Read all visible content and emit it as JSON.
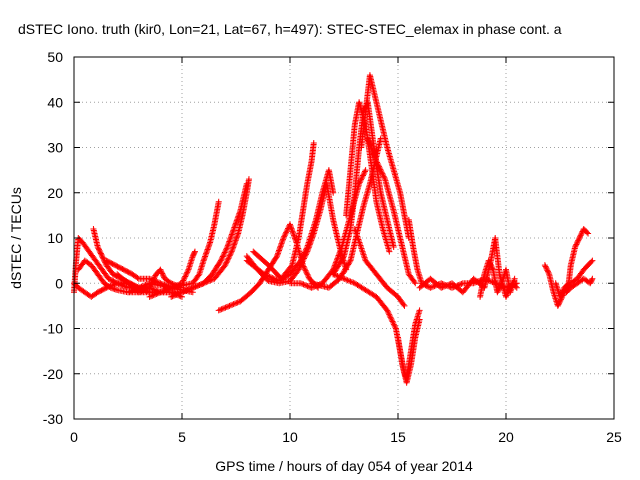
{
  "chart_data": {
    "type": "scatter",
    "title": "dSTEC Iono. truth (kir0, Lon=21, Lat=67, h=497): STEC-STEC_elemax in phase cont. a",
    "xlabel": "GPS time / hours of day 054 of year 2014",
    "ylabel": "dSTEC  / TECUs",
    "xlim": [
      0,
      25
    ],
    "ylim": [
      -30,
      50
    ],
    "x_ticks": [
      0,
      5,
      10,
      15,
      20,
      25
    ],
    "y_ticks": [
      -30,
      -20,
      -10,
      0,
      10,
      20,
      30,
      40,
      50
    ],
    "x_tick_labels": [
      "0",
      "5",
      "10",
      "15",
      "20",
      "25"
    ],
    "y_tick_labels": [
      "-30",
      "-20",
      "-10",
      "0",
      "10",
      "20",
      "30",
      "40",
      "50"
    ],
    "grid": true,
    "marker": "+",
    "color": "#ff0000",
    "series": [
      {
        "points": [
          [
            0.0,
            -2
          ],
          [
            0.1,
            5
          ],
          [
            0.2,
            10
          ],
          [
            0.4,
            9
          ],
          [
            0.7,
            7
          ],
          [
            1.0,
            5
          ],
          [
            1.3,
            3
          ],
          [
            1.6,
            1
          ],
          [
            2.0,
            0
          ],
          [
            2.5,
            -1
          ],
          [
            3.0,
            -1
          ]
        ]
      },
      {
        "points": [
          [
            0.0,
            0
          ],
          [
            0.2,
            -1
          ],
          [
            0.5,
            -2
          ],
          [
            0.8,
            -3
          ],
          [
            1.1,
            -2
          ],
          [
            1.5,
            -1
          ],
          [
            2.0,
            0
          ],
          [
            2.5,
            0
          ],
          [
            3.0,
            -1
          ],
          [
            3.5,
            -2
          ],
          [
            4.0,
            -2
          ],
          [
            4.5,
            -2
          ],
          [
            5.0,
            -3
          ]
        ]
      },
      {
        "points": [
          [
            0.2,
            3
          ],
          [
            0.5,
            5
          ],
          [
            0.8,
            4
          ],
          [
            1.1,
            2
          ],
          [
            1.4,
            0
          ],
          [
            1.7,
            -1
          ],
          [
            2.0,
            -1.5
          ],
          [
            2.5,
            -2
          ],
          [
            3.0,
            -2
          ],
          [
            3.5,
            -2
          ]
        ]
      },
      {
        "points": [
          [
            0.9,
            12
          ],
          [
            1.0,
            10
          ],
          [
            1.1,
            8
          ],
          [
            1.3,
            6
          ],
          [
            1.5,
            4
          ],
          [
            1.8,
            2
          ],
          [
            2.2,
            1
          ],
          [
            2.6,
            0
          ],
          [
            3.0,
            -1
          ],
          [
            3.5,
            -1
          ],
          [
            4.0,
            -2
          ],
          [
            4.5,
            -2
          ],
          [
            5.0,
            -2
          ]
        ]
      },
      {
        "points": [
          [
            1.5,
            5
          ],
          [
            1.9,
            4
          ],
          [
            2.3,
            3
          ],
          [
            2.7,
            2
          ],
          [
            3.0,
            1
          ],
          [
            3.5,
            1
          ],
          [
            4.0,
            0
          ],
          [
            4.5,
            -1
          ],
          [
            5.0,
            -1.5
          ],
          [
            5.5,
            -2
          ]
        ]
      },
      {
        "points": [
          [
            2.0,
            2
          ],
          [
            2.5,
            0
          ],
          [
            3.0,
            -2
          ],
          [
            3.5,
            -1
          ],
          [
            3.8,
            2
          ],
          [
            4.0,
            3
          ],
          [
            4.2,
            1
          ],
          [
            4.5,
            0
          ],
          [
            5.0,
            -1
          ]
        ]
      },
      {
        "points": [
          [
            2.5,
            -2
          ],
          [
            3.0,
            -1
          ],
          [
            3.5,
            0
          ],
          [
            4.0,
            -0.5
          ],
          [
            4.5,
            -1
          ],
          [
            5.0,
            0
          ],
          [
            5.3,
            3
          ],
          [
            5.5,
            6
          ],
          [
            5.6,
            7
          ]
        ]
      },
      {
        "points": [
          [
            3.5,
            -3
          ],
          [
            4.0,
            -2
          ],
          [
            4.5,
            -1
          ],
          [
            5.0,
            -0.5
          ],
          [
            5.5,
            0
          ],
          [
            5.8,
            2
          ],
          [
            6.0,
            5
          ],
          [
            6.3,
            9
          ],
          [
            6.5,
            13
          ],
          [
            6.7,
            18
          ]
        ]
      },
      {
        "points": [
          [
            4.5,
            -3
          ],
          [
            5.0,
            -2
          ],
          [
            5.5,
            -1
          ],
          [
            6.0,
            0
          ],
          [
            6.4,
            2
          ],
          [
            6.8,
            5
          ],
          [
            7.1,
            8
          ],
          [
            7.4,
            12
          ],
          [
            7.7,
            16
          ],
          [
            8.0,
            22
          ]
        ]
      },
      {
        "points": [
          [
            5.0,
            -2
          ],
          [
            5.5,
            -1
          ],
          [
            6.0,
            0
          ],
          [
            6.5,
            1
          ],
          [
            7.0,
            4
          ],
          [
            7.3,
            7
          ],
          [
            7.6,
            11
          ],
          [
            7.8,
            15
          ],
          [
            8.0,
            20
          ],
          [
            8.1,
            23
          ]
        ]
      },
      {
        "points": [
          [
            6.7,
            -6
          ],
          [
            7.2,
            -5
          ],
          [
            7.7,
            -4
          ],
          [
            8.2,
            -2
          ],
          [
            8.6,
            0
          ],
          [
            9.0,
            3
          ],
          [
            9.4,
            6
          ],
          [
            9.7,
            10
          ],
          [
            10.0,
            13
          ],
          [
            10.3,
            9
          ],
          [
            10.6,
            4
          ],
          [
            10.9,
            1
          ],
          [
            11.3,
            -1
          ]
        ]
      },
      {
        "points": [
          [
            8.0,
            6
          ],
          [
            8.5,
            3
          ],
          [
            9.0,
            0.5
          ],
          [
            9.5,
            0
          ],
          [
            10.0,
            0.5
          ],
          [
            10.4,
            3
          ],
          [
            10.8,
            7
          ],
          [
            11.1,
            11
          ],
          [
            11.4,
            16
          ],
          [
            11.7,
            22
          ],
          [
            12.0,
            14
          ],
          [
            12.3,
            8
          ],
          [
            12.6,
            3
          ]
        ]
      },
      {
        "points": [
          [
            8.0,
            5
          ],
          [
            8.8,
            2
          ],
          [
            9.5,
            0.5
          ],
          [
            10.0,
            2
          ],
          [
            10.5,
            5
          ],
          [
            10.8,
            8
          ],
          [
            11.2,
            14
          ],
          [
            11.5,
            20
          ],
          [
            11.8,
            25
          ],
          [
            12.0,
            20
          ]
        ]
      },
      {
        "points": [
          [
            8.3,
            7
          ],
          [
            9.0,
            4
          ],
          [
            9.6,
            1
          ],
          [
            10.1,
            4
          ],
          [
            10.4,
            10
          ],
          [
            10.6,
            16
          ],
          [
            10.8,
            22
          ],
          [
            11.0,
            27
          ],
          [
            11.1,
            31
          ]
        ]
      },
      {
        "points": [
          [
            10.0,
            0
          ],
          [
            10.5,
            0
          ],
          [
            11.0,
            -1
          ],
          [
            11.5,
            0
          ],
          [
            12.0,
            3
          ],
          [
            12.4,
            8
          ],
          [
            12.8,
            15
          ],
          [
            13.2,
            22
          ],
          [
            13.5,
            25
          ]
        ]
      },
      {
        "points": [
          [
            11.0,
            0
          ],
          [
            11.8,
            -1
          ],
          [
            12.3,
            1
          ],
          [
            12.8,
            5
          ],
          [
            13.1,
            11
          ],
          [
            13.4,
            17
          ],
          [
            13.7,
            22
          ],
          [
            14.0,
            28
          ],
          [
            14.2,
            32
          ]
        ]
      },
      {
        "points": [
          [
            12.0,
            2
          ],
          [
            12.5,
            6
          ],
          [
            12.8,
            12
          ],
          [
            13.0,
            20
          ],
          [
            13.2,
            30
          ],
          [
            13.4,
            38
          ],
          [
            13.6,
            40
          ],
          [
            13.8,
            33
          ],
          [
            14.0,
            26
          ],
          [
            14.2,
            20
          ],
          [
            14.5,
            14
          ],
          [
            14.8,
            8
          ]
        ]
      },
      {
        "points": [
          [
            12.6,
            15
          ],
          [
            12.8,
            25
          ],
          [
            13.0,
            35
          ],
          [
            13.2,
            40
          ],
          [
            13.5,
            35
          ],
          [
            13.8,
            25
          ],
          [
            14.0,
            18
          ],
          [
            14.3,
            12
          ],
          [
            14.6,
            7
          ]
        ]
      },
      {
        "points": [
          [
            13.3,
            30
          ],
          [
            13.5,
            38
          ],
          [
            13.7,
            46
          ],
          [
            13.9,
            42
          ],
          [
            14.2,
            36
          ],
          [
            14.5,
            30
          ],
          [
            14.8,
            25
          ],
          [
            15.1,
            20
          ],
          [
            15.3,
            15
          ],
          [
            15.5,
            10
          ]
        ]
      },
      {
        "points": [
          [
            13.6,
            32
          ],
          [
            14.0,
            27
          ],
          [
            14.4,
            23
          ],
          [
            14.8,
            16
          ],
          [
            15.2,
            8
          ],
          [
            15.5,
            2
          ],
          [
            15.8,
            0
          ]
        ]
      },
      {
        "points": [
          [
            13.0,
            12
          ],
          [
            13.5,
            5
          ],
          [
            14.0,
            2
          ],
          [
            14.5,
            -1
          ],
          [
            15.0,
            -3
          ],
          [
            15.3,
            -5
          ]
        ]
      },
      {
        "points": [
          [
            12.0,
            2
          ],
          [
            13.0,
            0
          ],
          [
            14.0,
            -3
          ],
          [
            14.5,
            -6
          ],
          [
            14.9,
            -10
          ],
          [
            15.1,
            -15
          ],
          [
            15.3,
            -20
          ],
          [
            15.4,
            -21
          ],
          [
            15.6,
            -15
          ],
          [
            15.8,
            -9
          ],
          [
            16.0,
            -6
          ]
        ]
      },
      {
        "points": [
          [
            15.0,
            -12
          ],
          [
            15.2,
            -18
          ],
          [
            15.4,
            -22
          ],
          [
            15.6,
            -18
          ],
          [
            15.8,
            -12
          ],
          [
            16.0,
            -8
          ]
        ]
      },
      {
        "points": [
          [
            15.5,
            14
          ],
          [
            15.7,
            8
          ],
          [
            15.9,
            3
          ],
          [
            16.1,
            0
          ],
          [
            16.5,
            -1
          ],
          [
            17.0,
            0
          ],
          [
            17.5,
            -1
          ],
          [
            18.0,
            0
          ],
          [
            18.5,
            0
          ],
          [
            19.0,
            1
          ],
          [
            19.5,
            0
          ],
          [
            20.0,
            -1
          ],
          [
            20.5,
            0
          ]
        ]
      },
      {
        "points": [
          [
            16.0,
            -1
          ],
          [
            16.5,
            1
          ],
          [
            17.0,
            -1
          ],
          [
            17.5,
            0
          ],
          [
            18.0,
            -2
          ],
          [
            18.5,
            1
          ],
          [
            19.0,
            -1
          ],
          [
            19.3,
            5
          ],
          [
            19.5,
            10
          ],
          [
            19.7,
            2
          ],
          [
            20.0,
            -3
          ],
          [
            20.3,
            0
          ],
          [
            20.5,
            -1
          ]
        ]
      },
      {
        "points": [
          [
            18.8,
            -3
          ],
          [
            19.0,
            2
          ],
          [
            19.2,
            5
          ],
          [
            19.4,
            3
          ],
          [
            19.6,
            -2
          ],
          [
            19.8,
            0
          ],
          [
            20.0,
            3
          ],
          [
            20.2,
            -2
          ],
          [
            20.4,
            1
          ]
        ]
      },
      {
        "points": [
          [
            21.8,
            4
          ],
          [
            22.0,
            2
          ],
          [
            22.2,
            -2
          ],
          [
            22.4,
            -5
          ],
          [
            22.6,
            -3
          ],
          [
            22.8,
            -1
          ],
          [
            23.0,
            0
          ],
          [
            23.3,
            1
          ],
          [
            23.6,
            3
          ],
          [
            24.0,
            5
          ]
        ]
      },
      {
        "points": [
          [
            22.3,
            0
          ],
          [
            22.5,
            -3
          ],
          [
            22.7,
            -1
          ],
          [
            22.9,
            0
          ],
          [
            23.0,
            4
          ],
          [
            23.2,
            8
          ],
          [
            23.4,
            10
          ],
          [
            23.6,
            12
          ],
          [
            23.8,
            11
          ]
        ]
      },
      {
        "points": [
          [
            22.8,
            -2
          ],
          [
            23.0,
            -1
          ],
          [
            23.3,
            0
          ],
          [
            23.6,
            1
          ],
          [
            23.9,
            0
          ],
          [
            24.0,
            1
          ]
        ]
      }
    ]
  }
}
